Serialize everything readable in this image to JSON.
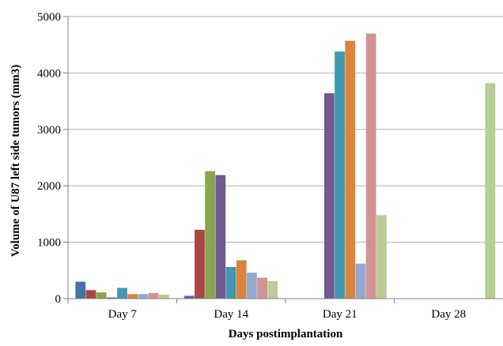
{
  "chart_data": {
    "type": "bar",
    "title": "",
    "xlabel": "Days postimplantation",
    "ylabel": "Volume of U87 left side tumors (mm3)",
    "ylim": [
      0,
      5000
    ],
    "yticks": [
      0,
      1000,
      2000,
      3000,
      4000,
      5000
    ],
    "grid": true,
    "legend": "none",
    "categories": [
      "Day 7",
      "Day 14",
      "Day 21",
      "Day 28"
    ],
    "series": [
      {
        "color": "#4572a7",
        "values": [
          300,
          50,
          0,
          0
        ]
      },
      {
        "color": "#aa4643",
        "values": [
          150,
          1220,
          0,
          0
        ]
      },
      {
        "color": "#89a54e",
        "values": [
          110,
          2260,
          0,
          0
        ]
      },
      {
        "color": "#71588f",
        "values": [
          20,
          2190,
          3640,
          0
        ]
      },
      {
        "color": "#4198af",
        "values": [
          190,
          560,
          4380,
          0
        ]
      },
      {
        "color": "#db843d",
        "values": [
          80,
          680,
          4570,
          0
        ]
      },
      {
        "color": "#93a9cf",
        "values": [
          80,
          460,
          620,
          0
        ]
      },
      {
        "color": "#d19392",
        "values": [
          100,
          370,
          4700,
          0
        ]
      },
      {
        "color": "#b9cd96",
        "values": [
          70,
          310,
          1480,
          3820
        ]
      }
    ]
  }
}
